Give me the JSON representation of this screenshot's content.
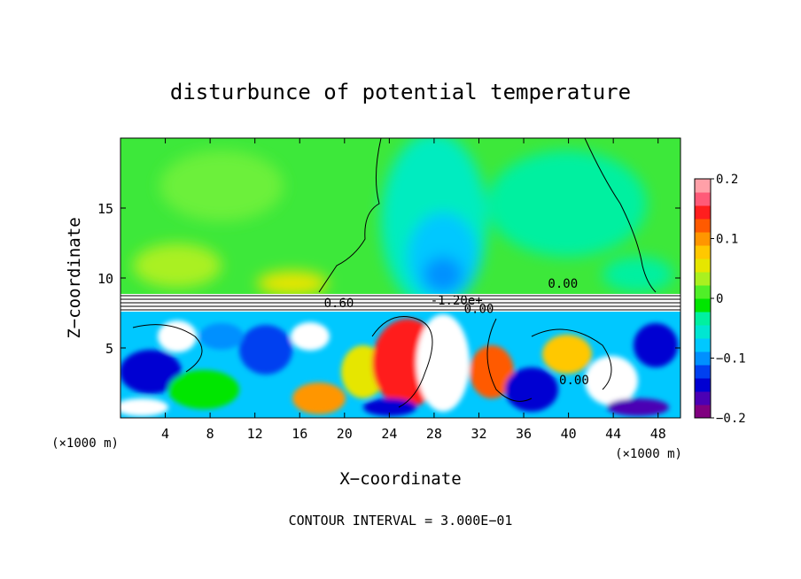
{
  "chart_data": {
    "type": "heatmap",
    "title": "disturbunce of potential temperature",
    "xlabel": "X−coordinate",
    "ylabel": "Z−coordinate",
    "xunit_left": "(×1000 m)",
    "xunit_right": "(×1000 m)",
    "xlim": [
      0,
      50
    ],
    "ylim": [
      0,
      20
    ],
    "xticks": [
      4,
      8,
      12,
      16,
      20,
      24,
      28,
      32,
      36,
      40,
      44,
      48
    ],
    "xtick_labels": [
      "4",
      "8",
      "12",
      "16",
      "20",
      "24",
      "28",
      "32",
      "36",
      "40",
      "44",
      "48"
    ],
    "yticks": [
      5,
      10,
      15
    ],
    "ytick_labels": [
      "5",
      "10",
      "15"
    ],
    "colorbar": {
      "range": [
        -0.2,
        0.2
      ],
      "ticks": [
        0.2,
        0.1,
        0,
        -0.1,
        -0.2
      ],
      "tick_labels": [
        "0.2",
        "0.1",
        "0",
        "−0.1",
        "−0.2"
      ],
      "colors": [
        "#800080",
        "#4b00b4",
        "#0000d2",
        "#0040f0",
        "#0090ff",
        "#00c8ff",
        "#00e6d2",
        "#00f0a0",
        "#00e600",
        "#50ef28",
        "#aaf020",
        "#e6e600",
        "#ffc800",
        "#ff9600",
        "#ff5a00",
        "#ff1e1e",
        "#ff5a78",
        "#ffa0a8"
      ]
    },
    "contour_labels": [
      {
        "text": "0.60",
        "x": 19.5,
        "z": 7.9
      },
      {
        "text": "-1.20e+",
        "x": 30,
        "z": 8.1
      },
      {
        "text": "0.00",
        "x": 32,
        "z": 7.5
      },
      {
        "text": "0.00",
        "x": 39.5,
        "z": 9.3
      },
      {
        "text": "0.00",
        "x": 40.5,
        "z": 2.4
      }
    ],
    "contour_interval": "CONTOUR INTERVAL = 3.000E−01"
  }
}
